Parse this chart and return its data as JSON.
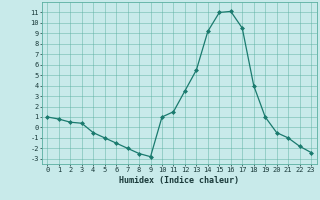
{
  "x": [
    0,
    1,
    2,
    3,
    4,
    5,
    6,
    7,
    8,
    9,
    10,
    11,
    12,
    13,
    14,
    15,
    16,
    17,
    18,
    19,
    20,
    21,
    22,
    23
  ],
  "y": [
    1.0,
    0.8,
    0.5,
    0.4,
    -0.5,
    -1.0,
    -1.5,
    -2.0,
    -2.5,
    -2.8,
    1.0,
    1.5,
    3.5,
    5.5,
    9.2,
    11.0,
    11.1,
    9.5,
    4.0,
    1.0,
    -0.5,
    -1.0,
    -1.8,
    -2.4
  ],
  "xlabel": "Humidex (Indice chaleur)",
  "ylim": [
    -3.5,
    12
  ],
  "xlim": [
    -0.5,
    23.5
  ],
  "yticks": [
    -3,
    -2,
    -1,
    0,
    1,
    2,
    3,
    4,
    5,
    6,
    7,
    8,
    9,
    10,
    11
  ],
  "xticks": [
    0,
    1,
    2,
    3,
    4,
    5,
    6,
    7,
    8,
    9,
    10,
    11,
    12,
    13,
    14,
    15,
    16,
    17,
    18,
    19,
    20,
    21,
    22,
    23
  ],
  "line_color": "#1a7a6e",
  "marker_color": "#1a7a6e",
  "bg_color": "#c8eaea",
  "grid_color": "#5aafa0",
  "xlabel_fontsize": 6,
  "tick_fontsize": 5,
  "marker_size": 2,
  "line_width": 0.9
}
